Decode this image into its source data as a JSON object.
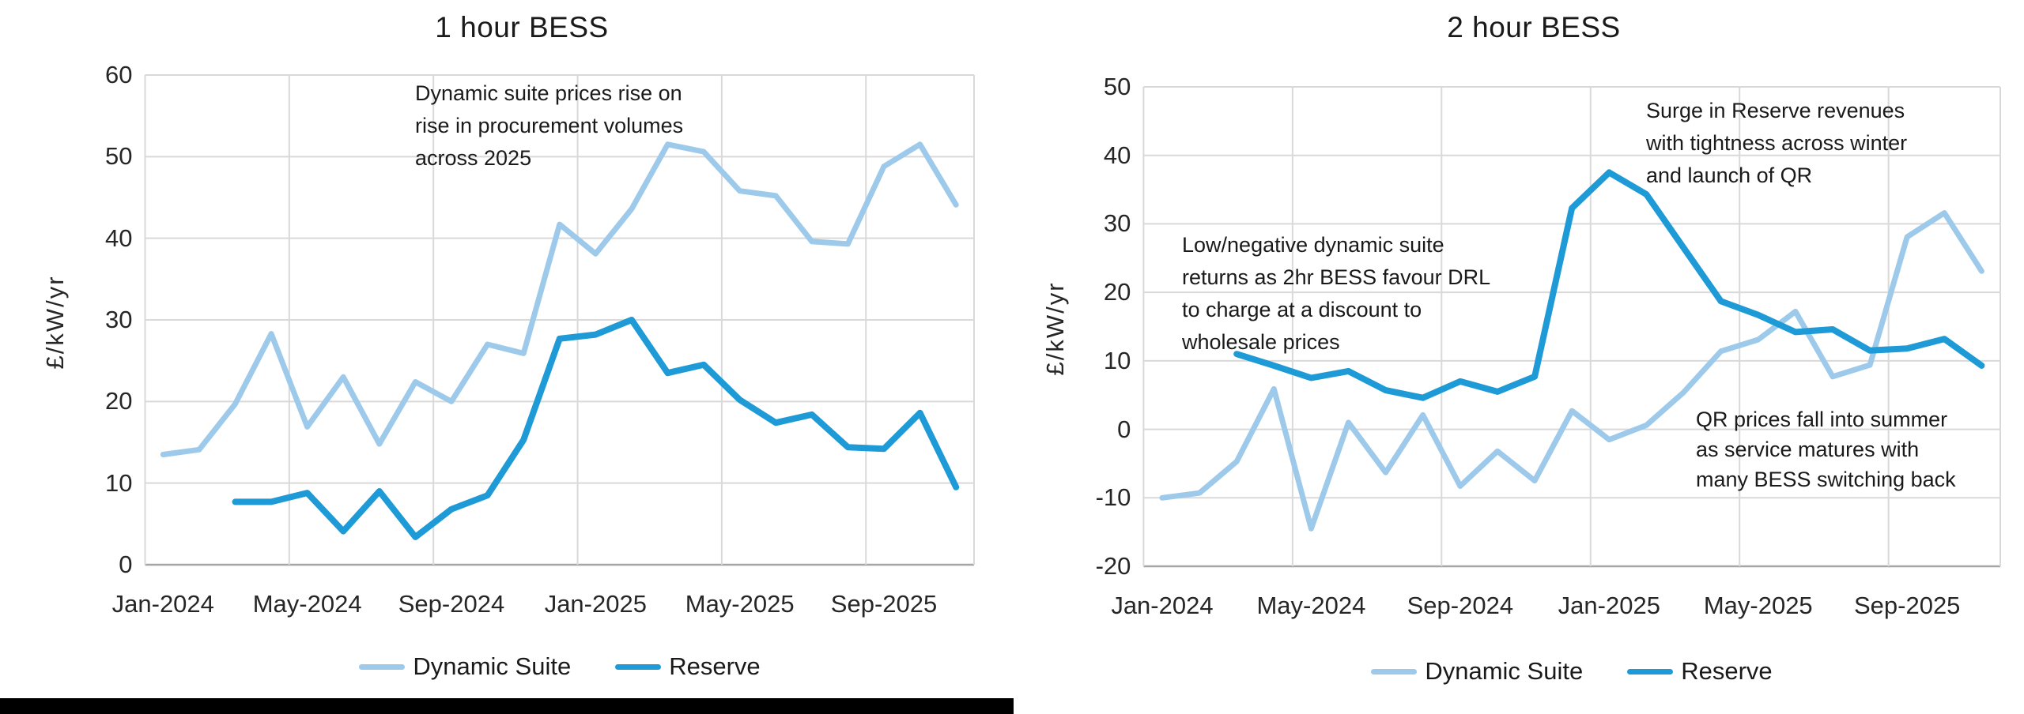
{
  "colors": {
    "dynamic_suite": "#9DC9EA",
    "reserve": "#1E9BD7",
    "gridline": "#D9D9D9",
    "axis_line": "#A6A6A6",
    "text": "#1A1A1A"
  },
  "chart_data": [
    {
      "type": "line",
      "title": "1 hour BESS",
      "ylabel": "£/kW/yr",
      "ylim": [
        0,
        60
      ],
      "y_ticks": [
        0,
        10,
        20,
        30,
        40,
        50,
        60
      ],
      "grid": true,
      "legend_position": "bottom",
      "x": [
        "Jan-2024",
        "Feb-2024",
        "Mar-2024",
        "Apr-2024",
        "May-2024",
        "Jun-2024",
        "Jul-2024",
        "Aug-2024",
        "Sep-2024",
        "Oct-2024",
        "Nov-2024",
        "Dec-2024",
        "Jan-2025",
        "Feb-2025",
        "Mar-2025",
        "Apr-2025",
        "May-2025",
        "Jun-2025",
        "Jul-2025",
        "Aug-2025",
        "Sep-2025",
        "Oct-2025",
        "Nov-2025"
      ],
      "x_tick_labels": [
        "Jan-2024",
        "May-2024",
        "Sep-2024",
        "Jan-2025",
        "May-2025",
        "Sep-2025"
      ],
      "series": [
        {
          "name": "Dynamic Suite",
          "values": [
            13.5,
            14.1,
            19.7,
            28.3,
            16.9,
            23.0,
            14.8,
            22.4,
            20.0,
            27.0,
            25.9,
            41.7,
            38.1,
            43.6,
            51.5,
            50.6,
            45.8,
            45.2,
            39.6,
            39.3,
            48.8,
            51.5,
            44.1
          ]
        },
        {
          "name": "Reserve",
          "values": [
            null,
            null,
            7.7,
            7.7,
            8.8,
            4.1,
            9.0,
            3.4,
            6.8,
            8.5,
            15.3,
            27.7,
            28.2,
            30.0,
            23.5,
            24.5,
            20.2,
            17.4,
            18.4,
            14.4,
            14.2,
            18.6,
            9.5
          ]
        }
      ],
      "annotations": [
        {
          "text": "Dynamic suite prices rise on\nrise in procurement volumes\nacross 2025"
        }
      ]
    },
    {
      "type": "line",
      "title": "2 hour BESS",
      "ylabel": "£/kW/yr",
      "ylim": [
        -20,
        50
      ],
      "y_ticks": [
        -20,
        -10,
        0,
        10,
        20,
        30,
        40,
        50
      ],
      "grid": true,
      "legend_position": "bottom",
      "x": [
        "Jan-2024",
        "Feb-2024",
        "Mar-2024",
        "Apr-2024",
        "May-2024",
        "Jun-2024",
        "Jul-2024",
        "Aug-2024",
        "Sep-2024",
        "Oct-2024",
        "Nov-2024",
        "Dec-2024",
        "Jan-2025",
        "Feb-2025",
        "Mar-2025",
        "Apr-2025",
        "May-2025",
        "Jun-2025",
        "Jul-2025",
        "Aug-2025",
        "Sep-2025",
        "Oct-2025",
        "Nov-2025"
      ],
      "x_tick_labels": [
        "Jan-2024",
        "May-2024",
        "Sep-2024",
        "Jan-2025",
        "May-2025",
        "Sep-2025"
      ],
      "series": [
        {
          "name": "Dynamic Suite",
          "values": [
            -10.0,
            -9.3,
            -4.7,
            5.9,
            -14.5,
            1.0,
            -6.3,
            2.1,
            -8.3,
            -3.2,
            -7.5,
            2.7,
            -1.5,
            0.6,
            5.4,
            11.4,
            13.1,
            17.2,
            7.7,
            9.4,
            28.1,
            31.6,
            23.1
          ]
        },
        {
          "name": "Reserve",
          "values": [
            null,
            null,
            11.0,
            9.3,
            7.5,
            8.5,
            5.7,
            4.6,
            7.0,
            5.5,
            7.7,
            32.3,
            37.5,
            34.3,
            26.5,
            18.7,
            16.7,
            14.2,
            14.6,
            11.5,
            11.8,
            13.2,
            9.3
          ]
        }
      ],
      "annotations": [
        {
          "text": "Low/negative dynamic suite\nreturns as 2hr BESS favour DRL\nto charge at a discount to\nwholesale prices"
        },
        {
          "text": "Surge in Reserve revenues\nwith tightness across winter\nand launch of QR"
        },
        {
          "text": "QR prices fall into summer\nas service matures with\nmany BESS switching back"
        }
      ]
    }
  ]
}
